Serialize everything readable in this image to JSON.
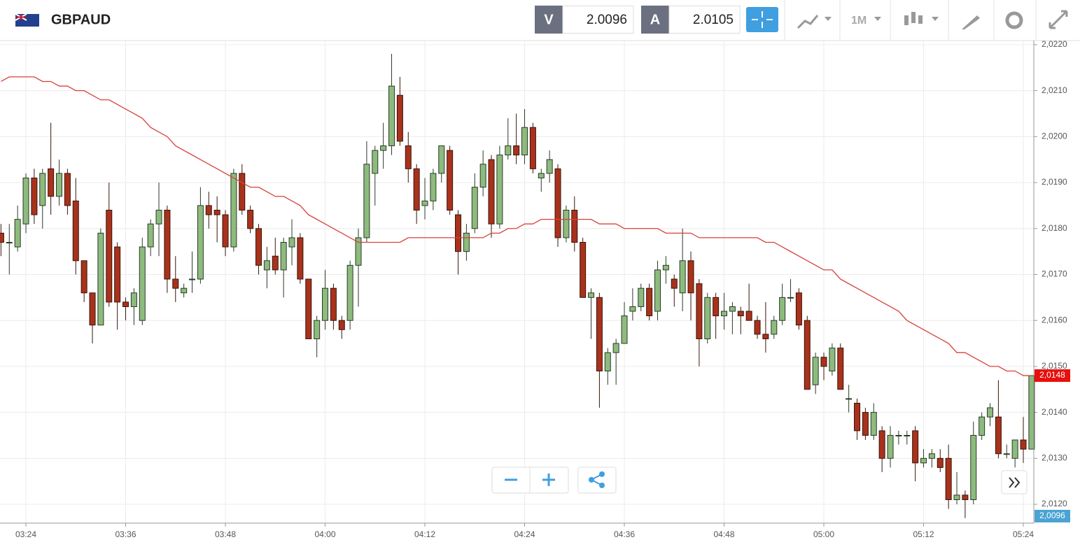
{
  "header": {
    "symbol": "GBPAUD",
    "sell_label": "V",
    "sell_price": "2.0096",
    "buy_label": "A",
    "buy_price": "2.0105",
    "timeframe": "1M"
  },
  "chart_data": {
    "type": "candlestick",
    "categories": [
      null,
      null,
      null,
      "03:24",
      null,
      null,
      null,
      null,
      null,
      null,
      null,
      null,
      null,
      null,
      null,
      "03:36",
      null,
      null,
      null,
      null,
      null,
      null,
      null,
      null,
      null,
      null,
      null,
      "03:48",
      null,
      null,
      null,
      null,
      null,
      null,
      null,
      null,
      null,
      null,
      null,
      "04:00",
      null,
      null,
      null,
      null,
      null,
      null,
      null,
      null,
      null,
      null,
      null,
      "04:12",
      null,
      null,
      null,
      null,
      null,
      null,
      null,
      null,
      null,
      null,
      null,
      "04:24",
      null,
      null,
      null,
      null,
      null,
      null,
      null,
      null,
      null,
      null,
      null,
      "04:36",
      null,
      null,
      null,
      null,
      null,
      null,
      null,
      null,
      null,
      null,
      null,
      "04:48",
      null,
      null,
      null,
      null,
      null,
      null,
      null,
      null,
      null,
      null,
      null,
      "05:00",
      null,
      null,
      null,
      null,
      null,
      null,
      null,
      null,
      null,
      null,
      null,
      "05:12",
      null,
      null,
      null,
      null,
      null,
      null,
      null,
      null,
      null,
      null,
      null,
      "05:24",
      null
    ],
    "open": [
      2.0179,
      2.0177,
      2.0176,
      2.0181,
      2.0191,
      2.0185,
      2.0193,
      2.0187,
      2.0192,
      2.0186,
      2.0173,
      2.0166,
      2.0159,
      2.0184,
      2.0176,
      2.0164,
      2.0163,
      2.016,
      2.0176,
      2.0181,
      2.0184,
      2.0169,
      2.0166,
      2.0169,
      2.0169,
      2.0185,
      2.0184,
      2.0183,
      2.0176,
      2.0192,
      2.0184,
      2.018,
      2.0171,
      2.0174,
      2.0171,
      2.0176,
      2.0178,
      2.0169,
      2.0156,
      2.016,
      2.0167,
      2.016,
      2.016,
      2.0172,
      2.0178,
      2.0192,
      2.0197,
      2.0198,
      2.0209,
      2.0198,
      2.0193,
      2.0185,
      2.0186,
      2.0192,
      2.0197,
      2.0183,
      2.0175,
      2.018,
      2.0189,
      2.0195,
      2.0181,
      2.0196,
      2.0198,
      2.0196,
      2.0202,
      2.0191,
      2.0192,
      2.0193,
      2.0178,
      2.0184,
      2.0177,
      2.0165,
      2.0165,
      2.0149,
      2.0153,
      2.0155,
      2.0162,
      2.0163,
      2.0167,
      2.0162,
      2.0171,
      2.0169,
      2.0166,
      2.0173,
      2.0168,
      2.0156,
      2.0165,
      2.0161,
      2.0162,
      2.0162,
      2.0162,
      2.016,
      2.0157,
      2.0157,
      2.016,
      2.0165,
      2.0166,
      2.016,
      2.0146,
      2.0152,
      2.0149,
      2.0154,
      2.0143,
      2.0142,
      2.014,
      2.0135,
      2.0136,
      2.013,
      2.0135,
      2.0135,
      2.0136,
      2.0129,
      2.013,
      2.013,
      2.013,
      2.0121,
      2.0122,
      2.0121,
      2.0135,
      2.0139,
      2.0139,
      2.0131,
      2.013,
      2.0134,
      2.0132
    ],
    "high": [
      2.0181,
      2.0181,
      2.0185,
      2.0192,
      2.0193,
      2.0193,
      2.0203,
      2.0195,
      2.0193,
      2.0191,
      2.0173,
      2.0166,
      2.018,
      2.019,
      2.0177,
      2.0165,
      2.0167,
      2.0178,
      2.0182,
      2.019,
      2.0185,
      2.0174,
      2.0168,
      2.0175,
      2.0189,
      2.0188,
      2.0187,
      2.0184,
      2.0193,
      2.0194,
      2.0185,
      2.0181,
      2.0176,
      2.0178,
      2.0178,
      2.0182,
      2.0179,
      2.0169,
      2.0161,
      2.0171,
      2.0168,
      2.0161,
      2.0173,
      2.018,
      2.0199,
      2.0198,
      2.0203,
      2.0218,
      2.0213,
      2.0201,
      2.0194,
      2.0191,
      2.0193,
      2.0198,
      2.0198,
      2.0184,
      2.0181,
      2.0192,
      2.0197,
      2.0196,
      2.0198,
      2.0204,
      2.0205,
      2.0206,
      2.0203,
      2.0193,
      2.0197,
      2.0194,
      2.0185,
      2.0187,
      2.0178,
      2.0167,
      2.0166,
      2.0154,
      2.0156,
      2.0164,
      2.0167,
      2.0168,
      2.0168,
      2.0173,
      2.0174,
      2.017,
      2.018,
      2.0175,
      2.0169,
      2.0166,
      2.0166,
      2.0166,
      2.0164,
      2.0163,
      2.0168,
      2.0161,
      2.0164,
      2.0161,
      2.0168,
      2.0169,
      2.0167,
      2.0161,
      2.0153,
      2.0153,
      2.0155,
      2.0155,
      2.0146,
      2.0143,
      2.0141,
      2.0142,
      2.0137,
      2.0137,
      2.0136,
      2.0136,
      2.0137,
      2.0132,
      2.0132,
      2.0132,
      2.0133,
      2.0127,
      2.0123,
      2.0138,
      2.014,
      2.0142,
      2.0147,
      2.0133,
      2.0134,
      2.0139,
      2.0148
    ],
    "low": [
      2.0174,
      2.017,
      2.0175,
      2.0179,
      2.0181,
      2.018,
      2.0183,
      2.0185,
      2.0183,
      2.017,
      2.0164,
      2.0155,
      2.0159,
      2.0163,
      2.0158,
      2.016,
      2.0159,
      2.0159,
      2.0174,
      2.0174,
      2.0166,
      2.0164,
      2.0165,
      2.0166,
      2.0168,
      2.018,
      2.0177,
      2.0174,
      2.0175,
      2.0183,
      2.0179,
      2.017,
      2.0167,
      2.017,
      2.0165,
      2.0172,
      2.0168,
      2.0156,
      2.0152,
      2.0158,
      2.0158,
      2.0156,
      2.0158,
      2.0163,
      2.0177,
      2.0185,
      2.0193,
      2.0196,
      2.0198,
      2.019,
      2.0181,
      2.0182,
      2.0184,
      2.019,
      2.0183,
      2.017,
      2.0173,
      2.0179,
      2.0187,
      2.0178,
      2.018,
      2.0195,
      2.0194,
      2.0194,
      2.0192,
      2.0188,
      2.019,
      2.0176,
      2.0177,
      2.0175,
      2.0165,
      2.0156,
      2.0141,
      2.0146,
      2.0146,
      2.0155,
      2.016,
      2.0162,
      2.016,
      2.016,
      2.0168,
      2.0163,
      2.0162,
      2.016,
      2.015,
      2.0155,
      2.0156,
      2.0158,
      2.0157,
      2.0157,
      2.016,
      2.0156,
      2.0153,
      2.0156,
      2.0159,
      2.0164,
      2.0158,
      2.0145,
      2.0144,
      2.0147,
      2.0148,
      2.0145,
      2.014,
      2.0134,
      2.0134,
      2.0134,
      2.0127,
      2.0128,
      2.0133,
      2.0133,
      2.0125,
      2.0128,
      2.0128,
      2.0127,
      2.0119,
      2.012,
      2.0117,
      2.012,
      2.0134,
      2.0137,
      2.013,
      2.013,
      2.0128,
      2.0129,
      2.0132
    ],
    "close": [
      2.0177,
      2.0177,
      2.0182,
      2.0191,
      2.0183,
      2.0192,
      2.0187,
      2.0192,
      2.0185,
      2.0173,
      2.0166,
      2.0159,
      2.0179,
      2.0164,
      2.0164,
      2.0163,
      2.0166,
      2.0176,
      2.0181,
      2.0184,
      2.0169,
      2.0167,
      2.0167,
      2.0169,
      2.0185,
      2.0183,
      2.0183,
      2.0176,
      2.0192,
      2.0184,
      2.018,
      2.0172,
      2.0173,
      2.0171,
      2.0177,
      2.0178,
      2.0169,
      2.0156,
      2.016,
      2.0167,
      2.016,
      2.0158,
      2.0172,
      2.0178,
      2.0194,
      2.0197,
      2.0198,
      2.0211,
      2.0199,
      2.0193,
      2.0184,
      2.0186,
      2.0192,
      2.0198,
      2.0184,
      2.0175,
      2.0179,
      2.0189,
      2.0194,
      2.0181,
      2.0196,
      2.0198,
      2.0196,
      2.0202,
      2.0193,
      2.0192,
      2.0195,
      2.0178,
      2.0184,
      2.0177,
      2.0165,
      2.0166,
      2.0149,
      2.0153,
      2.0155,
      2.0161,
      2.0163,
      2.0167,
      2.0161,
      2.0171,
      2.0172,
      2.0167,
      2.0173,
      2.0166,
      2.0156,
      2.0165,
      2.0161,
      2.0162,
      2.0163,
      2.0161,
      2.016,
      2.0157,
      2.0156,
      2.016,
      2.0165,
      2.0165,
      2.0159,
      2.0145,
      2.0152,
      2.015,
      2.0154,
      2.0145,
      2.0143,
      2.0136,
      2.0135,
      2.014,
      2.013,
      2.0135,
      2.0135,
      2.0135,
      2.0129,
      2.013,
      2.0131,
      2.0128,
      2.0121,
      2.0122,
      2.0121,
      2.0135,
      2.0139,
      2.0141,
      2.0131,
      2.0131,
      2.0134,
      2.0132,
      2.0148
    ],
    "up_color": "#8dbb7e",
    "down_color": "#a8321b",
    "moving_average": {
      "color": "#d9403a",
      "values": [
        2.0212,
        2.0213,
        2.0213,
        2.0213,
        2.0213,
        2.0212,
        2.0212,
        2.0211,
        2.0211,
        2.021,
        2.021,
        2.0209,
        2.0208,
        2.0208,
        2.0207,
        2.0206,
        2.0205,
        2.0204,
        2.0202,
        2.0201,
        2.02,
        2.0198,
        2.0197,
        2.0196,
        2.0195,
        2.0194,
        2.0193,
        2.0192,
        2.0191,
        2.019,
        2.0189,
        2.0189,
        2.0188,
        2.0187,
        2.0187,
        2.0186,
        2.0185,
        2.0183,
        2.0182,
        2.0181,
        2.018,
        2.0179,
        2.0178,
        2.0177,
        2.0177,
        2.0177,
        2.0177,
        2.0177,
        2.0177,
        2.0178,
        2.0178,
        2.0178,
        2.0178,
        2.0178,
        2.0178,
        2.0178,
        2.0178,
        2.0178,
        2.0178,
        2.0179,
        2.0179,
        2.018,
        2.018,
        2.0181,
        2.0181,
        2.0182,
        2.0182,
        2.0182,
        2.0182,
        2.0182,
        2.0182,
        2.0182,
        2.0181,
        2.0181,
        2.0181,
        2.018,
        2.018,
        2.018,
        2.018,
        2.018,
        2.0179,
        2.0179,
        2.0179,
        2.0179,
        2.0178,
        2.0178,
        2.0178,
        2.0178,
        2.0178,
        2.0178,
        2.0178,
        2.0178,
        2.0177,
        2.0177,
        2.0176,
        2.0175,
        2.0174,
        2.0173,
        2.0172,
        2.0171,
        2.0171,
        2.0169,
        2.0168,
        2.0167,
        2.0166,
        2.0165,
        2.0164,
        2.0163,
        2.0162,
        2.016,
        2.0159,
        2.0158,
        2.0157,
        2.0156,
        2.0155,
        2.0153,
        2.0153,
        2.0152,
        2.0151,
        2.015,
        2.015,
        2.0149,
        2.0149,
        2.0148,
        2.0148
      ]
    },
    "ylim": [
      2.01159,
      2.02209
    ],
    "yticks": [
      {
        "value": 2.012,
        "label": "2,0120"
      },
      {
        "value": 2.013,
        "label": "2,0130"
      },
      {
        "value": 2.014,
        "label": "2,0140"
      },
      {
        "value": 2.015,
        "label": "2,0150"
      },
      {
        "value": 2.016,
        "label": "2,0160"
      },
      {
        "value": 2.017,
        "label": "2,0170"
      },
      {
        "value": 2.018,
        "label": "2,0180"
      },
      {
        "value": 2.019,
        "label": "2,0190"
      },
      {
        "value": 2.02,
        "label": "2,0200"
      },
      {
        "value": 2.021,
        "label": "2,0210"
      },
      {
        "value": 2.022,
        "label": "2,0220"
      }
    ],
    "grid": true,
    "price_tags": [
      {
        "value": 2.0148,
        "label": "2,0148",
        "color": "#e8100c"
      },
      {
        "value": 2.0096,
        "label": "2,0096",
        "color": "#4aa3d3"
      }
    ]
  }
}
